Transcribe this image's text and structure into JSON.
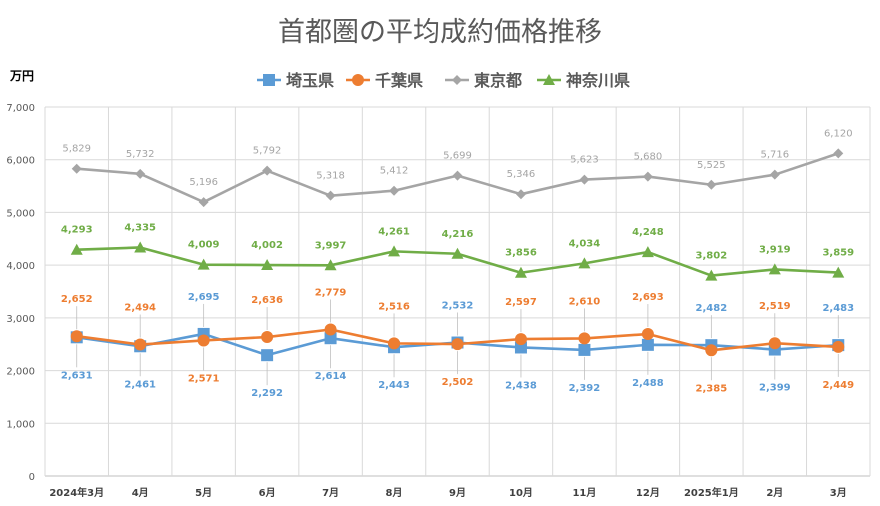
{
  "chart_data": {
    "type": "line",
    "title": "首都圏の平均成約価格推移",
    "ylabel": "万円",
    "xlabel": "",
    "ylim": [
      0,
      7000
    ],
    "ytick_labels": [
      "0",
      "1,000",
      "2,000",
      "3,000",
      "4,000",
      "5,000",
      "6,000",
      "7,000"
    ],
    "grid": true,
    "legend_position": "top",
    "categories": [
      "2024年3月",
      "4月",
      "5月",
      "6月",
      "7月",
      "8月",
      "9月",
      "10月",
      "11月",
      "12月",
      "2025年1月",
      "2月",
      "3月"
    ],
    "series": [
      {
        "name": "埼玉県",
        "color": "#5b9bd5",
        "marker": "square",
        "values": [
          2631,
          2461,
          2695,
          2292,
          2614,
          2443,
          2532,
          2438,
          2392,
          2488,
          2482,
          2399,
          2483
        ],
        "labels": [
          "2,631",
          "2,461",
          "2,695",
          "2,292",
          "2,614",
          "2,443",
          "2,532",
          "2,438",
          "2,392",
          "2,488",
          "2,482",
          "2,399",
          "2,483"
        ]
      },
      {
        "name": "千葉県",
        "color": "#ed7d31",
        "marker": "circle",
        "values": [
          2652,
          2494,
          2571,
          2636,
          2779,
          2516,
          2502,
          2597,
          2610,
          2693,
          2385,
          2519,
          2449
        ],
        "labels": [
          "2,652",
          "2,494",
          "2,571",
          "2,636",
          "2,779",
          "2,516",
          "2,502",
          "2,597",
          "2,610",
          "2,693",
          "2,385",
          "2,519",
          "2,449"
        ]
      },
      {
        "name": "東京都",
        "color": "#a5a5a5",
        "marker": "diamond",
        "values": [
          5829,
          5732,
          5196,
          5792,
          5318,
          5412,
          5699,
          5346,
          5623,
          5680,
          5525,
          5716,
          6120
        ],
        "labels": [
          "5,829",
          "5,732",
          "5,196",
          "5,792",
          "5,318",
          "5,412",
          "5,699",
          "5,346",
          "5,623",
          "5,680",
          "5,525",
          "5,716",
          "6,120"
        ]
      },
      {
        "name": "神奈川県",
        "color": "#70ad47",
        "marker": "triangle",
        "values": [
          4293,
          4335,
          4009,
          4002,
          3997,
          4261,
          4216,
          3856,
          4034,
          4248,
          3802,
          3919,
          3859
        ],
        "labels": [
          "4,293",
          "4,335",
          "4,009",
          "4,002",
          "3,997",
          "4,261",
          "4,216",
          "3,856",
          "4,034",
          "4,248",
          "3,802",
          "3,919",
          "3,859"
        ]
      }
    ]
  }
}
